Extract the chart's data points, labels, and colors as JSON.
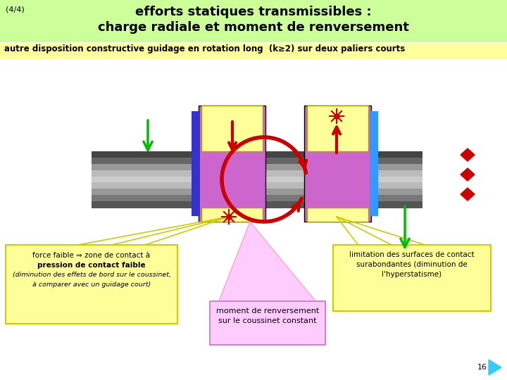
{
  "title_line1": "efforts statiques transmissibles :",
  "title_line2": "charge radiale et moment de renversement",
  "slide_number": "(4/4)",
  "subtitle": "autre disposition constructive guidage en rotation long  (k≥2) sur deux paliers courts",
  "bg_title": "#ccff99",
  "bg_subtitle": "#ffff99",
  "bg_main": "#ffffff",
  "house_color": "#cc66cc",
  "pad_color": "#ffff99",
  "blue_left": "#3333cc",
  "blue_right": "#3399ff",
  "green_color": "#00bb00",
  "red_color": "#cc0000",
  "diamond_color": "#cc0000",
  "callout_yellow_bg": "#ffff99",
  "callout_yellow_border": "#cccc00",
  "callout_pink_bg": "#ffccff",
  "callout_pink_border": "#cc88cc",
  "nav_color": "#33ccff",
  "shaft_colors": [
    "#444444",
    "#666666",
    "#999999",
    "#bbbbbb",
    "#cccccc",
    "#bbbbbb",
    "#999999",
    "#777777",
    "#555555"
  ]
}
